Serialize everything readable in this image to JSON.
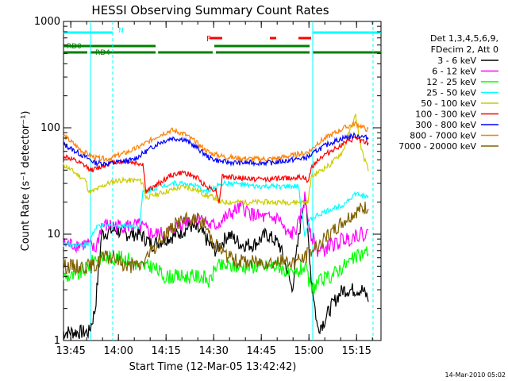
{
  "chart_data": {
    "type": "line",
    "title": "HESSI Observing Summary Count Rates",
    "xlabel": "Start Time (12-Mar-05 13:42:42)",
    "ylabel": "Count Rate (s⁻¹ detector⁻¹)",
    "ylog": true,
    "ylim": [
      1,
      1000
    ],
    "xlim_min": [
      0,
      100
    ],
    "x_units": "minutes after 13:42:42",
    "x_ticks": [
      {
        "label": "13:45",
        "t": 2.3
      },
      {
        "label": "14:00",
        "t": 17.3
      },
      {
        "label": "14:15",
        "t": 32.3
      },
      {
        "label": "14:30",
        "t": 47.3
      },
      {
        "label": "14:45",
        "t": 62.3
      },
      {
        "label": "15:00",
        "t": 77.3
      },
      {
        "label": "15:15",
        "t": 92.3
      }
    ],
    "y_ticks": [
      "1",
      "10",
      "100",
      "1000"
    ],
    "legend_header": [
      "Det 1,3,4,5,6,9,",
      "FDecim 2, Att 0"
    ],
    "footer_date": "14-Mar-2010 05:02",
    "series": [
      {
        "name": "3 - 6 keV",
        "color": "#000000",
        "t": [
          0,
          8,
          9,
          10,
          12,
          16,
          20,
          24,
          28,
          32,
          36,
          40,
          44,
          46,
          48,
          52,
          56,
          60,
          64,
          68,
          70,
          72,
          74,
          76,
          78,
          80,
          82,
          84,
          86,
          88,
          90,
          92,
          94,
          96
        ],
        "y": [
          1.2,
          1.2,
          1.5,
          2,
          10,
          11,
          10,
          10,
          8,
          9,
          10,
          12,
          10,
          8,
          7,
          10,
          8,
          8,
          10,
          8,
          5,
          3,
          9,
          25,
          4,
          1.3,
          1.5,
          2,
          2.5,
          3,
          3,
          3,
          3,
          2.5
        ]
      },
      {
        "name": "6 - 12 keV",
        "color": "#ff00ff",
        "t": [
          0,
          8,
          10,
          12,
          16,
          20,
          24,
          28,
          32,
          36,
          40,
          44,
          46,
          48,
          52,
          56,
          60,
          64,
          68,
          70,
          72,
          74,
          76,
          78,
          80,
          82,
          84,
          86,
          88,
          90,
          92,
          94,
          96
        ],
        "y": [
          8,
          8,
          7,
          12,
          12,
          12,
          12,
          10,
          10,
          12,
          14,
          14,
          12,
          12,
          15,
          18,
          15,
          14,
          14,
          10,
          10,
          12,
          22,
          10,
          7,
          7,
          8,
          8,
          9,
          9,
          10,
          10,
          10
        ]
      },
      {
        "name": "12 - 25 keV",
        "color": "#00ff00",
        "t": [
          0,
          4,
          8,
          10,
          12,
          16,
          20,
          24,
          28,
          32,
          36,
          40,
          44,
          46,
          48,
          52,
          56,
          60,
          64,
          68,
          72,
          76,
          78,
          80,
          84,
          88,
          92,
          96
        ],
        "y": [
          4,
          4,
          5,
          6,
          6,
          6,
          6,
          5,
          5,
          4,
          4,
          4,
          4,
          3.5,
          5,
          5,
          5,
          5,
          5,
          5,
          4,
          5,
          3,
          3.5,
          4,
          5,
          6,
          7
        ]
      },
      {
        "name": "25 - 50 keV",
        "color": "#00ffff",
        "t": [
          0,
          7,
          8,
          8.5,
          9,
          11,
          14,
          17,
          20,
          24,
          25,
          26,
          30,
          34,
          38,
          42,
          45,
          48,
          49,
          50,
          54,
          60,
          66,
          72,
          74,
          76,
          77,
          78,
          80,
          84,
          88,
          92,
          96
        ],
        "y": [
          8,
          8,
          8,
          9,
          10,
          12,
          12,
          12,
          12,
          12,
          25,
          25,
          28,
          30,
          30,
          28,
          25,
          27,
          30,
          30,
          30,
          28,
          28,
          28,
          28,
          10,
          12,
          14,
          15,
          17,
          19,
          24,
          22
        ]
      },
      {
        "name": "50 - 100 keV",
        "color": "#cccc00",
        "t": [
          0,
          7,
          8,
          9,
          11,
          14,
          17,
          20,
          24,
          25,
          26,
          30,
          34,
          38,
          42,
          45,
          48,
          49,
          50,
          54,
          60,
          66,
          72,
          76,
          77,
          78,
          80,
          84,
          88,
          90,
          92,
          94,
          96
        ],
        "y": [
          45,
          32,
          25,
          25,
          27,
          30,
          32,
          32,
          32,
          30,
          22,
          24,
          26,
          28,
          26,
          23,
          22,
          20,
          20,
          20,
          20,
          20,
          20,
          20,
          20,
          34,
          38,
          45,
          60,
          90,
          130,
          60,
          40
        ]
      },
      {
        "name": "100 - 300 keV",
        "color": "#ff0000",
        "t": [
          0,
          6,
          9,
          11,
          14,
          17,
          20,
          24,
          25,
          26,
          30,
          34,
          38,
          42,
          45,
          48,
          49,
          50,
          54,
          60,
          66,
          72,
          76,
          77,
          78,
          80,
          84,
          88,
          92,
          96
        ],
        "y": [
          55,
          45,
          40,
          42,
          46,
          48,
          48,
          46,
          46,
          25,
          30,
          36,
          38,
          34,
          28,
          26,
          20,
          35,
          34,
          33,
          33,
          34,
          34,
          30,
          42,
          50,
          60,
          70,
          80,
          70
        ]
      },
      {
        "name": "300 - 800 keV",
        "color": "#0000ff",
        "t": [
          0,
          6,
          10,
          14,
          18,
          22,
          26,
          30,
          34,
          38,
          42,
          46,
          50,
          54,
          60,
          66,
          72,
          76,
          78,
          80,
          84,
          88,
          92,
          96
        ],
        "y": [
          70,
          55,
          47,
          46,
          48,
          50,
          60,
          72,
          80,
          78,
          65,
          52,
          48,
          47,
          47,
          47,
          50,
          52,
          55,
          62,
          72,
          80,
          85,
          80
        ]
      },
      {
        "name": "800 - 7000 keV",
        "color": "#ff8000",
        "t": [
          0,
          6,
          10,
          14,
          18,
          22,
          26,
          30,
          34,
          38,
          42,
          46,
          50,
          54,
          60,
          66,
          72,
          76,
          78,
          80,
          84,
          88,
          92,
          96
        ],
        "y": [
          85,
          60,
          52,
          51,
          56,
          62,
          72,
          85,
          95,
          88,
          72,
          58,
          54,
          52,
          51,
          51,
          55,
          58,
          62,
          72,
          85,
          98,
          110,
          95
        ]
      },
      {
        "name": "7000 - 20000 keV",
        "color": "#806000",
        "t": [
          0,
          8,
          10,
          12,
          16,
          20,
          24,
          28,
          32,
          36,
          40,
          44,
          46,
          48,
          52,
          56,
          60,
          64,
          68,
          72,
          76,
          78,
          80,
          84,
          88,
          92,
          96
        ],
        "y": [
          5,
          5,
          5,
          6,
          6,
          5,
          5,
          7,
          10,
          13,
          14,
          13,
          10,
          8,
          6,
          5.5,
          5.5,
          5.5,
          5.5,
          5.5,
          6,
          7,
          8,
          10,
          13,
          16,
          18
        ]
      }
    ],
    "flag_labels": {
      "saa": "N",
      "flare": "F",
      "rd0": "RD0",
      "rd4": "RD4"
    },
    "flags": {
      "saa": {
        "color": "#00ffff",
        "segments": [
          [
            0,
            15.5
          ],
          [
            78.5,
            100
          ]
        ]
      },
      "flare": {
        "color": "#ff0000",
        "segments": [
          [
            46,
            50
          ],
          [
            65,
            67
          ],
          [
            74,
            78
          ]
        ]
      },
      "rd0": {
        "color": "#008000",
        "segments": [
          [
            0,
            29
          ],
          [
            47.5,
            77.5
          ]
        ]
      },
      "rd4": {
        "color": "#008000",
        "segments": [
          [
            0,
            7.5
          ],
          [
            8.5,
            29
          ],
          [
            29.8,
            47
          ],
          [
            48,
            77.5
          ],
          [
            78.5,
            100
          ]
        ]
      }
    },
    "night_lines_dashed": [
      15.5,
      97.5
    ],
    "day_lines_solid": [
      8.5,
      78.5
    ],
    "grid": false,
    "legend_position": "right"
  }
}
